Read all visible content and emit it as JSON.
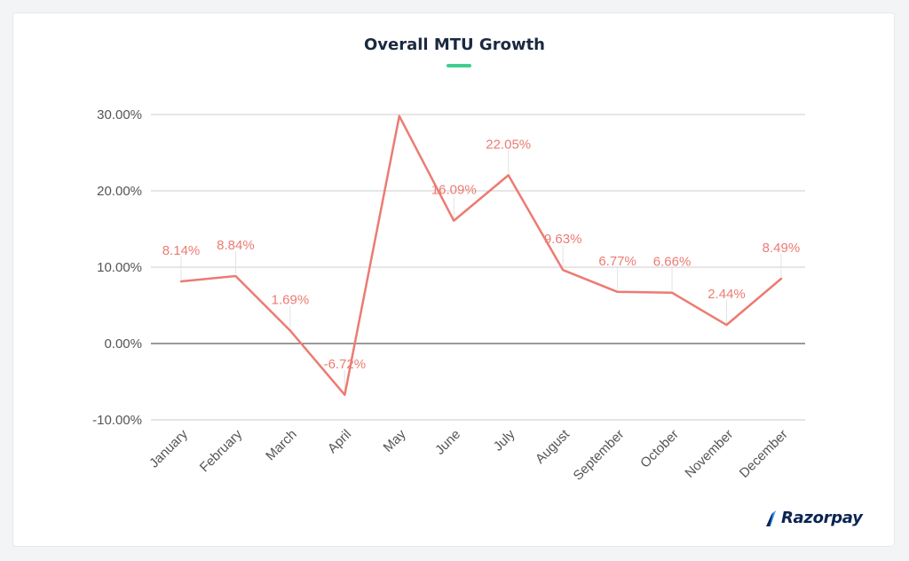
{
  "title": "Overall MTU Growth",
  "brand": {
    "name": "Razorpay",
    "color": "#0c2451",
    "accent": "#3395ff"
  },
  "chart_data": {
    "type": "line",
    "title": "Overall MTU Growth",
    "categories": [
      "January",
      "February",
      "March",
      "April",
      "May",
      "June",
      "July",
      "August",
      "September",
      "October",
      "November",
      "December"
    ],
    "series": [
      {
        "values": [
          8.14,
          8.84,
          1.69,
          -6.72,
          29.8,
          16.09,
          22.05,
          9.63,
          6.77,
          6.66,
          2.44,
          8.49
        ]
      }
    ],
    "data_labels": [
      "8.14%",
      "8.84%",
      "1.69%",
      "-6.72%",
      "",
      "16.09%",
      "22.05%",
      "9.63%",
      "6.77%",
      "6.66%",
      "2.44%",
      "8.49%"
    ],
    "y_ticks": [
      30,
      20,
      10,
      0,
      -10
    ],
    "y_tick_labels": [
      "30.00%",
      "20.00%",
      "10.00%",
      "0.00%",
      "-10.00%"
    ],
    "ylim": [
      -10,
      30
    ],
    "grid": true,
    "line_color": "#ec7b72",
    "accent_color": "#3ecf8e"
  }
}
